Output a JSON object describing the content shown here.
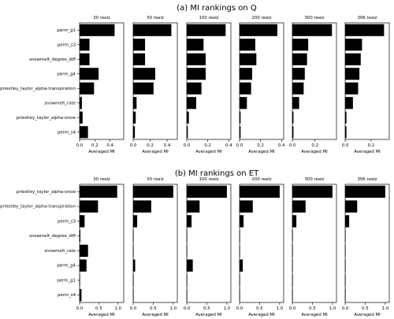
{
  "chart_data": [
    {
      "type": "bar",
      "orientation": "horizontal",
      "title": "(a)  MI rankings on Q",
      "xlabel": "Averaged MI",
      "categories": [
        "perm_g1",
        "perm_s3",
        "snowmelt_degree_diff",
        "perm_g4",
        "priestley_taylor_alpha-transpiration",
        "snowmelt_rate",
        "priestley_taylor_alpha-snow",
        "perm_s4"
      ],
      "panels": [
        {
          "subtitle": "30 realz",
          "xlim": [
            0,
            0.58
          ],
          "xticks": [
            0.0,
            0.2,
            0.4
          ],
          "xtick_labels": [
            "0.0",
            "0.2",
            "0.4"
          ],
          "values": [
            0.46,
            0.13,
            0.13,
            0.25,
            0.19,
            0.03,
            0.04,
            0.11
          ]
        },
        {
          "subtitle": "50 realz",
          "xlim": [
            0,
            0.52
          ],
          "xticks": [
            0.0,
            0.2,
            0.4
          ],
          "xtick_labels": [
            "0.0",
            "0.2",
            "0.4"
          ],
          "values": [
            0.45,
            0.14,
            0.14,
            0.26,
            0.24,
            0.04,
            0.03,
            0.02
          ]
        },
        {
          "subtitle": "100 realz",
          "xlim": [
            0,
            0.42
          ],
          "xticks": [
            0.0,
            0.2,
            0.4
          ],
          "xtick_labels": [
            "0.0",
            "0.2",
            "0.4"
          ],
          "values": [
            0.37,
            0.16,
            0.18,
            0.18,
            0.14,
            0.09,
            0.02,
            0.01
          ]
        },
        {
          "subtitle": "200 realz",
          "xlim": [
            0,
            0.42
          ],
          "xticks": [
            0.0,
            0.2,
            0.4
          ],
          "xtick_labels": [
            "0.0",
            "0.2",
            "0.4"
          ],
          "values": [
            0.36,
            0.15,
            0.16,
            0.12,
            0.11,
            0.07,
            0.01,
            0.01
          ]
        },
        {
          "subtitle": "300 realz",
          "xlim": [
            0,
            0.39
          ],
          "xticks": [
            0.0,
            0.2
          ],
          "xtick_labels": [
            "0.0",
            "0.2"
          ],
          "values": [
            0.35,
            0.14,
            0.13,
            0.11,
            0.1,
            0.06,
            0.01,
            0.01
          ]
        },
        {
          "subtitle": "396 realz",
          "xlim": [
            0,
            0.34
          ],
          "xticks": [
            0.0,
            0.2
          ],
          "xtick_labels": [
            "0.0",
            "0.2"
          ],
          "values": [
            0.3,
            0.13,
            0.12,
            0.11,
            0.1,
            0.06,
            0.01,
            0.01
          ]
        }
      ]
    },
    {
      "type": "bar",
      "orientation": "horizontal",
      "title": "(b)  MI rankings on ET",
      "xlabel": "Averaged MI",
      "categories": [
        "priestley_taylor_alpha-snow",
        "priestley_taylor_alpha-transpiration",
        "perm_s3",
        "snowmelt_degree_diff",
        "snowmelt_rate",
        "perm_g4",
        "perm_g1",
        "perm_s4"
      ],
      "panels": [
        {
          "subtitle": "30 realz",
          "xlim": [
            0,
            1.15
          ],
          "xticks": [
            0.0,
            0.5,
            1.0
          ],
          "xtick_labels": [
            "0.0",
            "0.5",
            "1.0"
          ],
          "values": [
            0.98,
            0.48,
            0.13,
            0.02,
            0.22,
            0.18,
            0.01,
            0.05
          ]
        },
        {
          "subtitle": "50 realz",
          "xlim": [
            0,
            1.1
          ],
          "xticks": [
            0.0,
            0.5,
            1.0
          ],
          "xtick_labels": [
            "0.0",
            "0.5",
            "1.0"
          ],
          "values": [
            1.0,
            0.45,
            0.1,
            0.01,
            0.01,
            0.05,
            0.01,
            0.01
          ]
        },
        {
          "subtitle": "100 realz",
          "xlim": [
            0,
            1.1
          ],
          "xticks": [
            0.0,
            0.5,
            1.0
          ],
          "xtick_labels": [
            "0.0",
            "0.5",
            "1.0"
          ],
          "values": [
            1.0,
            0.32,
            0.12,
            0.01,
            0.01,
            0.15,
            0.01,
            0.01
          ]
        },
        {
          "subtitle": "200 realz",
          "xlim": [
            0,
            1.1
          ],
          "xticks": [
            0.0,
            0.5,
            1.0
          ],
          "xtick_labels": [
            "0.0",
            "0.5",
            "1.0"
          ],
          "values": [
            1.0,
            0.33,
            0.1,
            0.01,
            0.01,
            0.08,
            0.01,
            0.01
          ]
        },
        {
          "subtitle": "300 realz",
          "xlim": [
            0,
            1.1
          ],
          "xticks": [
            0.0,
            0.5,
            1.0
          ],
          "xtick_labels": [
            "0.0",
            "0.5",
            "1.0"
          ],
          "values": [
            1.0,
            0.33,
            0.1,
            0.01,
            0.01,
            0.01,
            0.01,
            0.01
          ]
        },
        {
          "subtitle": "396 realz",
          "xlim": [
            0,
            1.1
          ],
          "xticks": [
            0.0,
            0.5,
            1.0
          ],
          "xtick_labels": [
            "0.0",
            "0.5",
            "1.0"
          ],
          "values": [
            1.0,
            0.3,
            0.1,
            0.01,
            0.01,
            0.01,
            0.01,
            0.01
          ]
        }
      ]
    }
  ]
}
